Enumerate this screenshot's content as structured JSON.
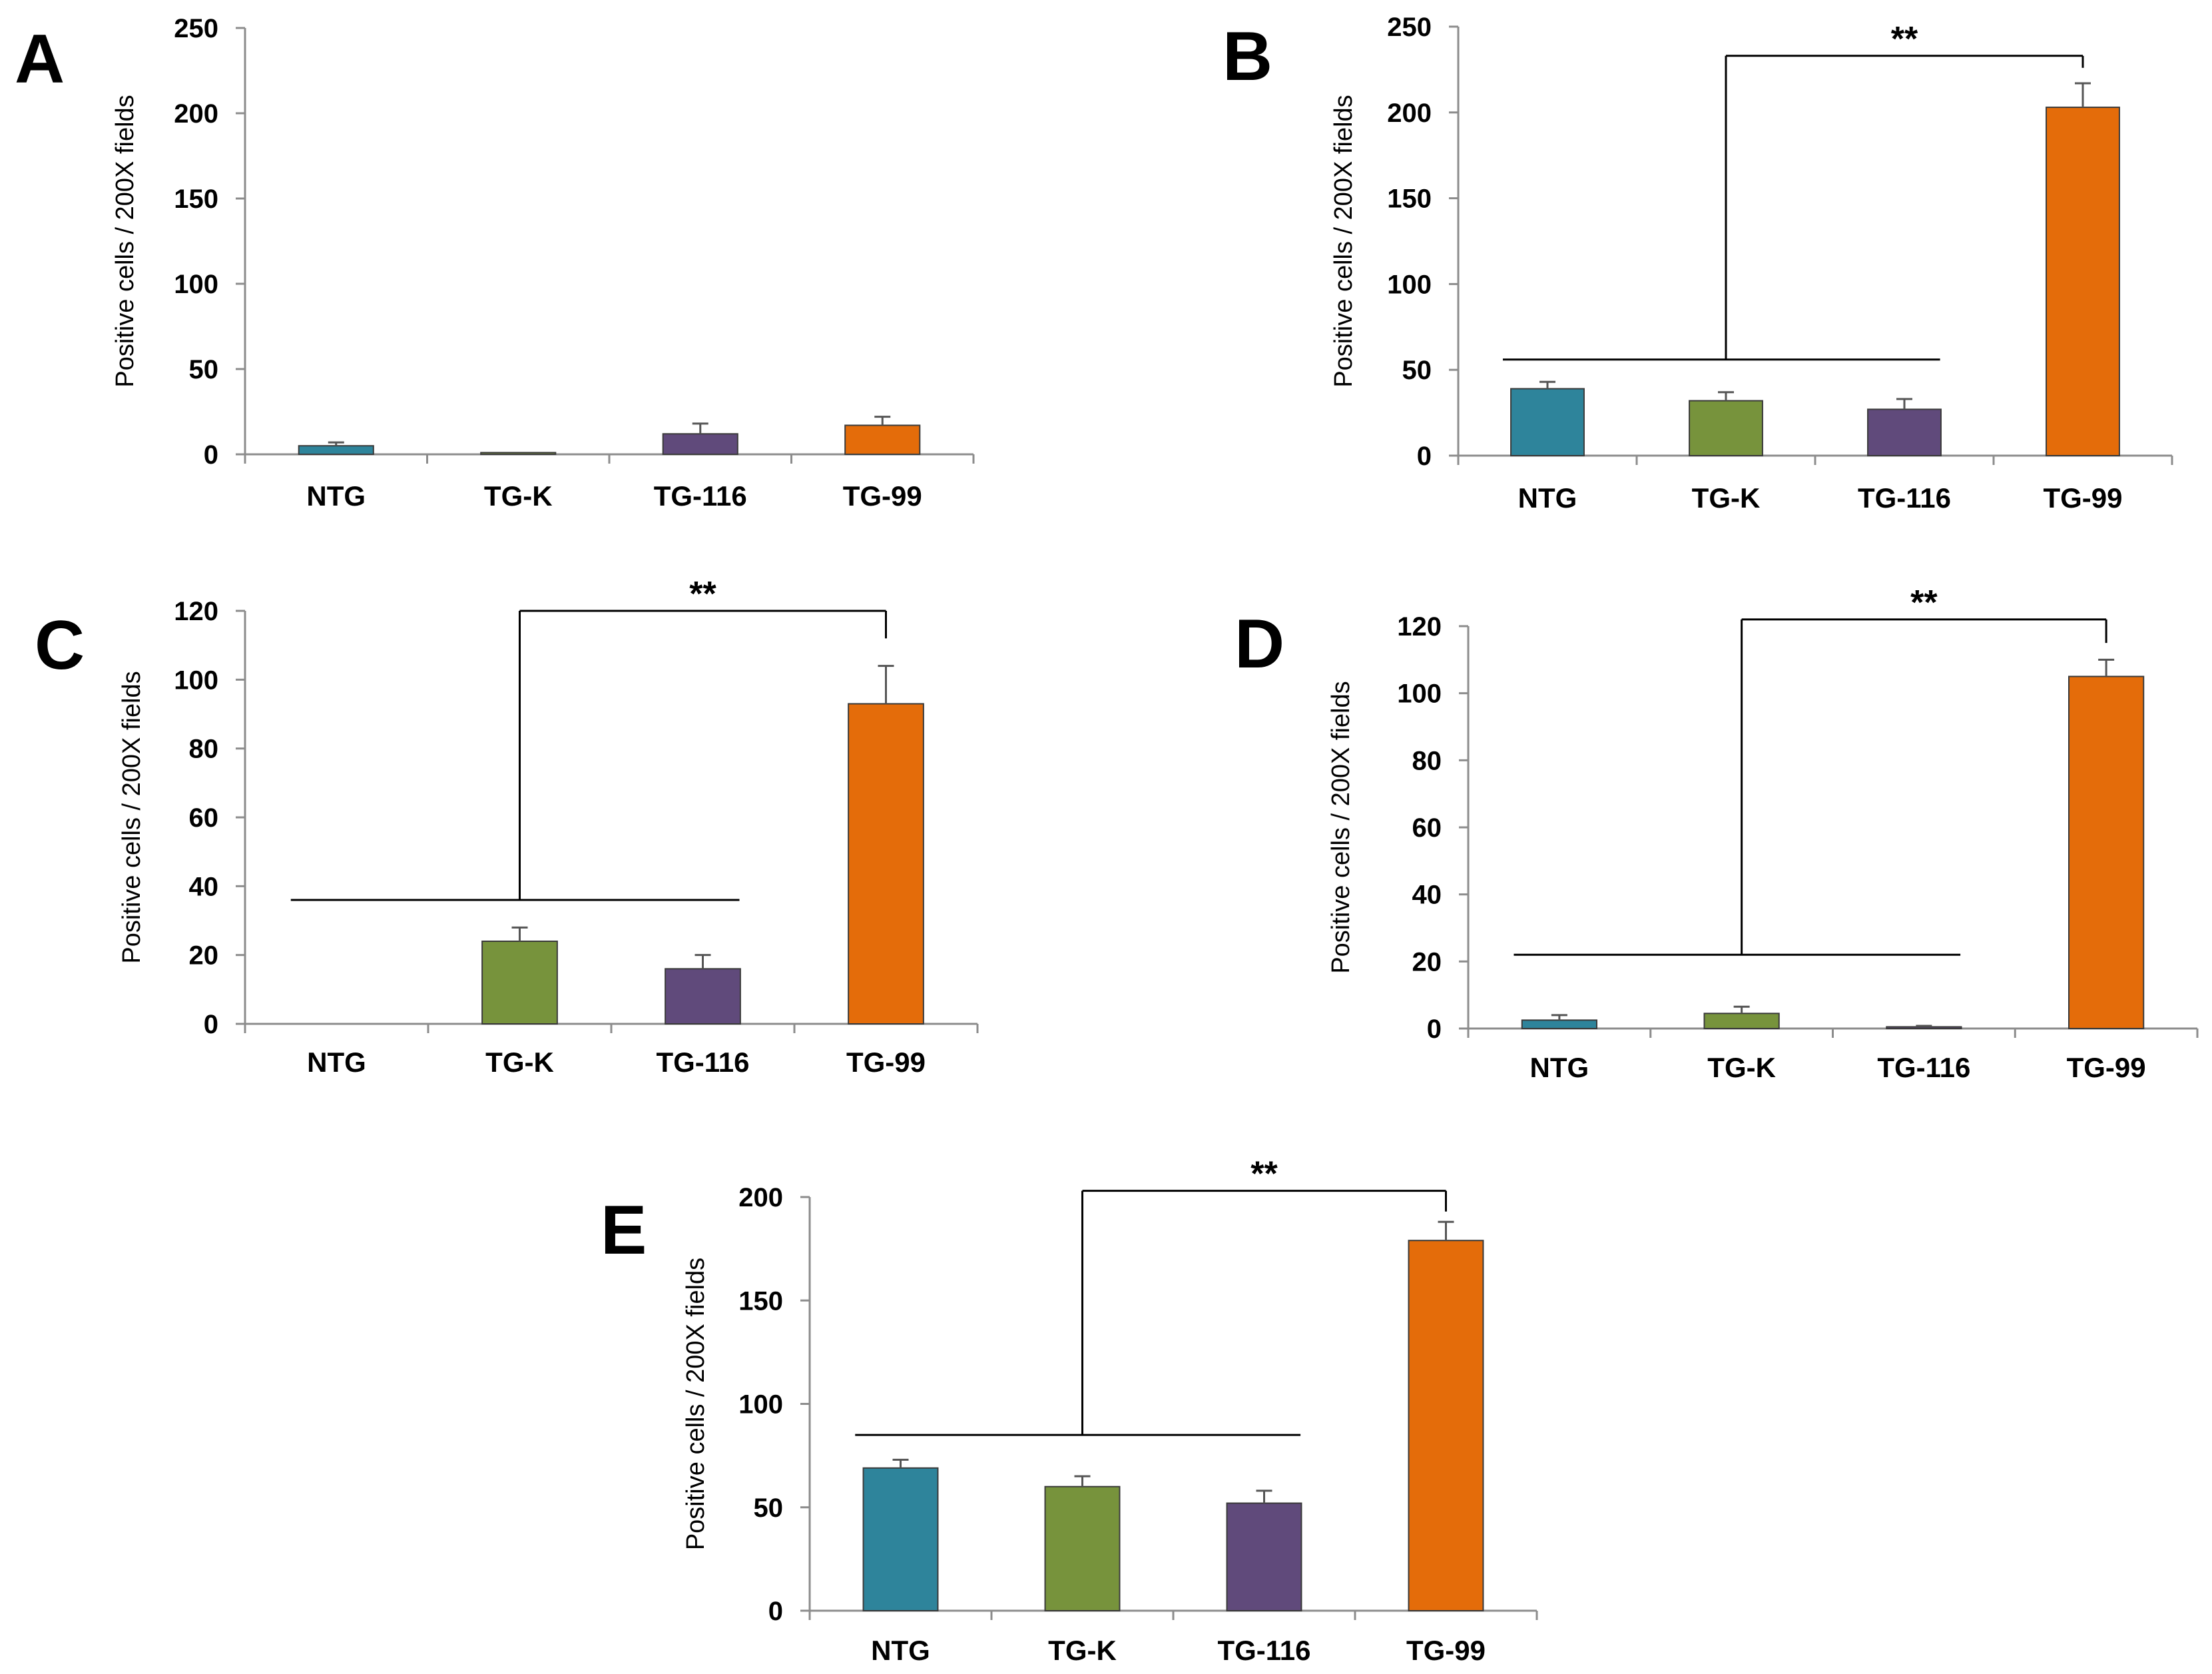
{
  "figure": {
    "type": "multi-panel-bar-chart"
  },
  "colors": {
    "NTG": "#2e849b",
    "TG-K": "#77933c",
    "TG-116": "#604a7b",
    "TG-99": "#e46c0a",
    "axis": "#8c8c8c",
    "text": "#000000",
    "bracket": "#000000"
  },
  "chart_data": [
    {
      "panel": "A",
      "type": "bar",
      "ylabel": "Positive cells / 200X fields",
      "categories": [
        "NTG",
        "TG-K",
        "TG-116",
        "TG-99"
      ],
      "values": [
        5,
        1,
        12,
        17
      ],
      "errors": [
        2,
        0,
        6,
        5
      ],
      "ylim": [
        0,
        250
      ],
      "yticks": [
        0,
        50,
        100,
        150,
        200,
        250
      ],
      "significance": null
    },
    {
      "panel": "B",
      "type": "bar",
      "ylabel": "Positive cells / 200X fields",
      "categories": [
        "NTG",
        "TG-K",
        "TG-116",
        "TG-99"
      ],
      "values": [
        39,
        32,
        27,
        203
      ],
      "errors": [
        4,
        5,
        6,
        14
      ],
      "ylim": [
        0,
        250
      ],
      "yticks": [
        0,
        50,
        100,
        150,
        200,
        250
      ],
      "significance": {
        "label": "**",
        "group_line_value": 56,
        "bracket_top_value": 233,
        "target_drop_value": 226
      }
    },
    {
      "panel": "C",
      "type": "bar",
      "ylabel": "Positive cells / 200X fields",
      "categories": [
        "NTG",
        "TG-K",
        "TG-116",
        "TG-99"
      ],
      "values": [
        0,
        24,
        16,
        93
      ],
      "errors": [
        0,
        4,
        4,
        11
      ],
      "ylim": [
        0,
        120
      ],
      "yticks": [
        0,
        20,
        40,
        60,
        80,
        100,
        120
      ],
      "significance": {
        "label": "**",
        "group_line_value": 36,
        "bracket_top_value": 120,
        "target_drop_value": 112
      }
    },
    {
      "panel": "D",
      "type": "bar",
      "ylabel": "Positive cells / 200X fields",
      "categories": [
        "NTG",
        "TG-K",
        "TG-116",
        "TG-99"
      ],
      "values": [
        2.5,
        4.5,
        0.5,
        105
      ],
      "errors": [
        1.5,
        2,
        0.3,
        5
      ],
      "ylim": [
        0,
        120
      ],
      "yticks": [
        0,
        20,
        40,
        60,
        80,
        100,
        120
      ],
      "significance": {
        "label": "**",
        "group_line_value": 22,
        "bracket_top_value": 122,
        "target_drop_value": 115
      }
    },
    {
      "panel": "E",
      "type": "bar",
      "ylabel": "Positive cells / 200X fields",
      "categories": [
        "NTG",
        "TG-K",
        "TG-116",
        "TG-99"
      ],
      "values": [
        69,
        60,
        52,
        179
      ],
      "errors": [
        4,
        5,
        6,
        9
      ],
      "ylim": [
        0,
        200
      ],
      "yticks": [
        0,
        50,
        100,
        150,
        200
      ],
      "significance": {
        "label": "**",
        "group_line_value": 85,
        "bracket_top_value": 203,
        "target_drop_value": 193
      }
    }
  ]
}
